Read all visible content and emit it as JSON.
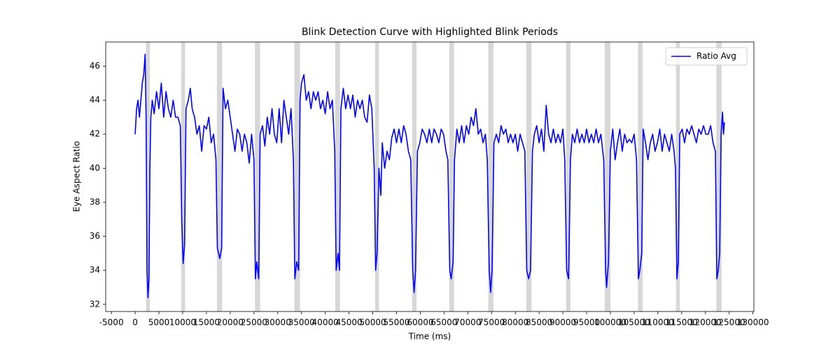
{
  "chart_data": {
    "type": "line",
    "title": "Blink Detection Curve with Highlighted Blink Periods",
    "xlabel": "Time (ms)",
    "ylabel": "Eye Aspect Ratio",
    "xlim": [
      -6200,
      130200
    ],
    "ylim": [
      31.58,
      47.42
    ],
    "xticks": [
      -5000,
      0,
      5000,
      10000,
      15000,
      20000,
      25000,
      30000,
      35000,
      40000,
      45000,
      50000,
      55000,
      60000,
      65000,
      70000,
      75000,
      80000,
      85000,
      90000,
      95000,
      100000,
      105000,
      110000,
      115000,
      120000,
      125000,
      130000
    ],
    "yticks": [
      32,
      34,
      36,
      38,
      40,
      42,
      44,
      46
    ],
    "legend": "upper right",
    "highlight_color": "#d3d3d3",
    "highlight_spans": [
      [
        2300,
        3100
      ],
      [
        9700,
        10500
      ],
      [
        17200,
        18300
      ],
      [
        25200,
        26300
      ],
      [
        33500,
        34700
      ],
      [
        42100,
        43100
      ],
      [
        50500,
        51300
      ],
      [
        58300,
        59200
      ],
      [
        66100,
        67100
      ],
      [
        74300,
        75400
      ],
      [
        82300,
        83400
      ],
      [
        90700,
        91600
      ],
      [
        98800,
        100000
      ],
      [
        105800,
        106800
      ],
      [
        113800,
        114600
      ],
      [
        122300,
        123400
      ]
    ],
    "x": [
      0,
      300,
      600,
      900,
      1200,
      1500,
      1800,
      2100,
      2300,
      2500,
      2700,
      2900,
      3100,
      3300,
      3600,
      4000,
      4500,
      5000,
      5500,
      6000,
      6500,
      7000,
      7500,
      8000,
      8500,
      9000,
      9500,
      9800,
      10100,
      10400,
      10700,
      11200,
      11600,
      12000,
      12500,
      13000,
      13500,
      14000,
      14500,
      15000,
      15500,
      16000,
      16500,
      17000,
      17300,
      17800,
      18200,
      18500,
      19000,
      19500,
      20000,
      20500,
      21000,
      21500,
      22000,
      22500,
      23000,
      23500,
      24000,
      24500,
      25000,
      25300,
      25600,
      26000,
      26300,
      26800,
      27300,
      27800,
      28300,
      28800,
      29300,
      29800,
      30300,
      30800,
      31300,
      31800,
      32300,
      32800,
      33300,
      33600,
      34000,
      34400,
      34700,
      35000,
      35500,
      36000,
      36500,
      37000,
      37500,
      38000,
      38500,
      39000,
      39500,
      40000,
      40500,
      41000,
      41500,
      42000,
      42300,
      42700,
      43000,
      43300,
      43800,
      44300,
      44800,
      45300,
      45800,
      46300,
      46800,
      47300,
      47800,
      48300,
      48800,
      49300,
      49800,
      50300,
      50600,
      50900,
      51300,
      51700,
      52000,
      52500,
      53000,
      53500,
      54000,
      54500,
      55000,
      55500,
      56000,
      56500,
      57000,
      57500,
      58000,
      58400,
      58700,
      59000,
      59400,
      59900,
      60400,
      60900,
      61400,
      61900,
      62400,
      62900,
      63400,
      63900,
      64400,
      64900,
      65400,
      65800,
      66200,
      66500,
      66900,
      67200,
      67700,
      68200,
      68700,
      69200,
      69700,
      70200,
      70700,
      71200,
      71700,
      72200,
      72700,
      73200,
      73700,
      74100,
      74500,
      74800,
      75100,
      75500,
      76000,
      76500,
      77000,
      77500,
      78000,
      78500,
      79000,
      79500,
      80000,
      80500,
      81000,
      81500,
      82000,
      82400,
      82800,
      83200,
      83600,
      84000,
      84500,
      85000,
      85500,
      86000,
      86500,
      87000,
      87500,
      88000,
      88500,
      89000,
      89500,
      90000,
      90400,
      90800,
      91200,
      91600,
      92000,
      92500,
      93000,
      93500,
      94000,
      94500,
      95000,
      95500,
      96000,
      96500,
      97000,
      97500,
      98000,
      98600,
      99000,
      99200,
      99600,
      100000,
      100500,
      101000,
      101500,
      102000,
      102500,
      103000,
      103500,
      104000,
      104500,
      105000,
      105500,
      105900,
      106200,
      106600,
      106900,
      107400,
      107900,
      108400,
      108900,
      109400,
      109900,
      110400,
      110900,
      111400,
      111900,
      112400,
      112900,
      113400,
      113700,
      114000,
      114300,
      114600,
      115100,
      115600,
      116100,
      116600,
      117100,
      117600,
      118100,
      118600,
      119100,
      119600,
      120100,
      120600,
      121100,
      121600,
      122100,
      122400,
      122700,
      123000,
      123300,
      123600,
      123800,
      124000
    ],
    "series": [
      {
        "name": "Ratio Avg",
        "color": "#0000ff",
        "values": [
          42.0,
          43.5,
          44.0,
          43.0,
          44.0,
          45.0,
          45.5,
          46.7,
          43.0,
          34.0,
          32.4,
          33.5,
          40.0,
          43.0,
          44.0,
          43.2,
          44.5,
          43.5,
          45.0,
          43.0,
          44.5,
          43.5,
          43.0,
          44.0,
          43.0,
          43.0,
          42.5,
          37.0,
          34.4,
          35.5,
          43.5,
          44.0,
          44.7,
          43.5,
          43.0,
          42.0,
          42.5,
          41.0,
          42.5,
          42.3,
          43.0,
          41.5,
          42.0,
          40.5,
          35.3,
          34.7,
          35.3,
          44.7,
          43.5,
          44.0,
          43.0,
          42.0,
          41.0,
          42.3,
          42.0,
          41.0,
          42.0,
          41.5,
          40.3,
          42.0,
          40.5,
          33.5,
          34.5,
          33.5,
          42.0,
          42.5,
          41.3,
          43.0,
          42.0,
          43.5,
          42.0,
          41.5,
          43.5,
          41.5,
          44.0,
          43.0,
          42.0,
          43.5,
          40.5,
          33.5,
          34.5,
          34.0,
          44.0,
          45.0,
          45.5,
          44.0,
          44.5,
          43.5,
          44.5,
          44.0,
          44.5,
          43.5,
          44.0,
          43.2,
          44.5,
          43.5,
          44.0,
          41.0,
          34.0,
          35.0,
          34.0,
          43.5,
          44.7,
          43.5,
          44.3,
          43.5,
          44.3,
          43.0,
          44.0,
          43.5,
          44.0,
          43.0,
          42.7,
          44.3,
          43.5,
          40.0,
          34.0,
          35.0,
          40.0,
          38.4,
          41.5,
          40.0,
          41.0,
          40.5,
          41.8,
          42.3,
          41.5,
          42.3,
          41.5,
          42.5,
          42.0,
          41.0,
          40.5,
          34.0,
          32.7,
          34.0,
          41.0,
          41.5,
          42.3,
          42.0,
          41.5,
          42.3,
          41.5,
          42.3,
          42.0,
          41.5,
          42.3,
          42.0,
          41.0,
          40.5,
          34.0,
          33.5,
          34.5,
          40.5,
          42.3,
          41.5,
          42.5,
          41.5,
          42.5,
          42.0,
          43.0,
          42.5,
          43.5,
          42.0,
          42.3,
          41.5,
          42.0,
          40.5,
          34.0,
          32.7,
          34.0,
          41.5,
          42.0,
          41.5,
          42.5,
          42.0,
          42.3,
          41.5,
          42.0,
          41.5,
          42.0,
          41.0,
          42.0,
          41.5,
          41.0,
          34.0,
          33.5,
          34.0,
          41.0,
          42.0,
          42.5,
          41.5,
          42.3,
          41.0,
          43.7,
          42.0,
          41.5,
          42.3,
          41.5,
          42.0,
          41.5,
          42.3,
          40.5,
          34.0,
          33.5,
          40.5,
          42.0,
          41.5,
          42.3,
          41.5,
          42.0,
          41.5,
          42.3,
          41.5,
          42.0,
          41.5,
          42.3,
          41.5,
          42.0,
          40.5,
          34.0,
          33.0,
          34.5,
          41.0,
          42.3,
          40.5,
          41.5,
          42.3,
          41.0,
          42.0,
          41.5,
          41.7,
          41.5,
          42.0,
          40.5,
          33.5,
          34.0,
          35.0,
          42.3,
          41.5,
          40.5,
          41.5,
          42.0,
          41.0,
          41.5,
          42.3,
          41.0,
          42.0,
          41.5,
          41.0,
          42.0,
          41.0,
          40.0,
          33.5,
          34.5,
          42.0,
          42.3,
          41.5,
          42.3,
          42.0,
          42.5,
          42.0,
          41.5,
          42.3,
          42.0,
          42.5,
          42.0,
          42.0,
          42.5,
          41.5,
          41.0,
          33.5,
          34.0,
          35.0,
          42.0,
          43.3,
          42.0,
          42.7
        ]
      }
    ]
  }
}
